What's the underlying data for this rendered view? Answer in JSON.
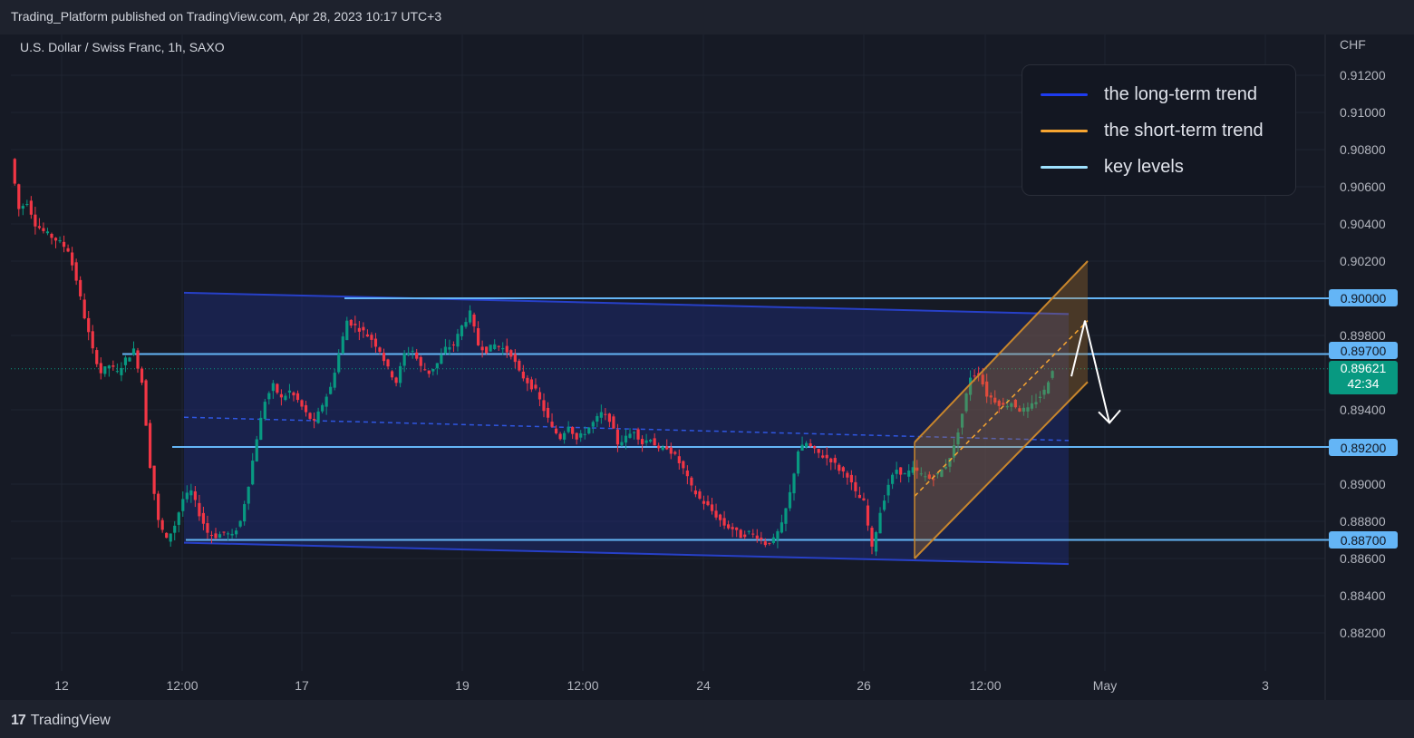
{
  "header": {
    "publish_text": "Trading_Platform published on TradingView.com, Apr 28, 2023 10:17 UTC+3"
  },
  "symbol_text": "U.S. Dollar / Swiss Franc, 1h, SAXO",
  "footer": {
    "brand": "TradingView",
    "logo_glyph": "17"
  },
  "legend": [
    {
      "label": "the long-term trend",
      "color": "#1e3cf0"
    },
    {
      "label": "the short-term trend",
      "color": "#f7a531"
    },
    {
      "label": "key levels",
      "color": "#9fe2ff"
    }
  ],
  "key_levels": [
    {
      "label": "0.90000",
      "value": 0.9
    },
    {
      "label": "0.89700",
      "value": 0.897
    },
    {
      "label": "0.89200",
      "value": 0.892
    },
    {
      "label": "0.88700",
      "value": 0.887
    }
  ],
  "current_price": {
    "value": "0.89621",
    "countdown": "42:34",
    "color": "#089981"
  },
  "colors": {
    "up": "#089981",
    "down": "#f23645",
    "level_line": "#64b5f6",
    "channel_fill": "#1e2a6e",
    "channel_line": "#1e3a9e"
  },
  "chart_data": {
    "type": "candlestick",
    "title": "U.S. Dollar / Swiss Franc, 1h, SAXO",
    "currency": "CHF",
    "y_ticks": [
      "0.91200",
      "0.91000",
      "0.90800",
      "0.90600",
      "0.90400",
      "0.90200",
      "0.89800",
      "0.89400",
      "0.89000",
      "0.88800",
      "0.88600",
      "0.88400",
      "0.88200"
    ],
    "x_ticks": [
      "12",
      "12:00",
      "17",
      "19",
      "12:00",
      "24",
      "26",
      "12:00",
      "May",
      "3"
    ],
    "ylim": [
      0.8805,
      0.9135
    ],
    "close_path": [
      [
        0,
        0.9075
      ],
      [
        1,
        0.9048
      ],
      [
        2,
        0.9052
      ],
      [
        3,
        0.904
      ],
      [
        4,
        0.9036
      ],
      [
        5,
        0.9033
      ],
      [
        6,
        0.903
      ],
      [
        7,
        0.9026
      ],
      [
        8,
        0.901
      ],
      [
        9,
        0.899
      ],
      [
        10,
        0.8972
      ],
      [
        11,
        0.896
      ],
      [
        12,
        0.8964
      ],
      [
        13,
        0.896
      ],
      [
        14,
        0.8967
      ],
      [
        15,
        0.8972
      ],
      [
        16,
        0.8955
      ],
      [
        17,
        0.891
      ],
      [
        18,
        0.888
      ],
      [
        19,
        0.887
      ],
      [
        20,
        0.8878
      ],
      [
        21,
        0.8892
      ],
      [
        22,
        0.8896
      ],
      [
        23,
        0.8884
      ],
      [
        24,
        0.8874
      ],
      [
        25,
        0.8872
      ],
      [
        26,
        0.8874
      ],
      [
        27,
        0.8872
      ],
      [
        28,
        0.888
      ],
      [
        29,
        0.89
      ],
      [
        30,
        0.8925
      ],
      [
        31,
        0.8945
      ],
      [
        32,
        0.8953
      ],
      [
        33,
        0.8946
      ],
      [
        34,
        0.895
      ],
      [
        35,
        0.8945
      ],
      [
        36,
        0.8938
      ],
      [
        37,
        0.8933
      ],
      [
        38,
        0.8943
      ],
      [
        39,
        0.8952
      ],
      [
        40,
        0.897
      ],
      [
        41,
        0.8988
      ],
      [
        42,
        0.8985
      ],
      [
        43,
        0.8982
      ],
      [
        44,
        0.8978
      ],
      [
        45,
        0.8972
      ],
      [
        46,
        0.8962
      ],
      [
        47,
        0.8955
      ],
      [
        48,
        0.897
      ],
      [
        49,
        0.8972
      ],
      [
        50,
        0.8963
      ],
      [
        51,
        0.896
      ],
      [
        52,
        0.8965
      ],
      [
        53,
        0.8973
      ],
      [
        54,
        0.8975
      ],
      [
        55,
        0.8985
      ],
      [
        56,
        0.8992
      ],
      [
        57,
        0.8975
      ],
      [
        58,
        0.8972
      ],
      [
        59,
        0.8975
      ],
      [
        60,
        0.8973
      ],
      [
        61,
        0.897
      ],
      [
        62,
        0.896
      ],
      [
        63,
        0.8955
      ],
      [
        64,
        0.895
      ],
      [
        65,
        0.894
      ],
      [
        66,
        0.893
      ],
      [
        67,
        0.8925
      ],
      [
        68,
        0.8932
      ],
      [
        69,
        0.8924
      ],
      [
        70,
        0.8928
      ],
      [
        71,
        0.8933
      ],
      [
        72,
        0.8938
      ],
      [
        73,
        0.8935
      ],
      [
        74,
        0.8922
      ],
      [
        75,
        0.8925
      ],
      [
        76,
        0.8929
      ],
      [
        77,
        0.8922
      ],
      [
        78,
        0.8925
      ],
      [
        79,
        0.8918
      ],
      [
        80,
        0.892
      ],
      [
        81,
        0.8915
      ],
      [
        82,
        0.8908
      ],
      [
        83,
        0.8898
      ],
      [
        84,
        0.8892
      ],
      [
        85,
        0.8888
      ],
      [
        86,
        0.8883
      ],
      [
        87,
        0.8878
      ],
      [
        88,
        0.8876
      ],
      [
        89,
        0.8872
      ],
      [
        90,
        0.8874
      ],
      [
        91,
        0.8872
      ],
      [
        92,
        0.8868
      ],
      [
        93,
        0.887
      ],
      [
        94,
        0.8878
      ],
      [
        95,
        0.8895
      ],
      [
        96,
        0.8918
      ],
      [
        97,
        0.8922
      ],
      [
        98,
        0.8918
      ],
      [
        99,
        0.8915
      ],
      [
        100,
        0.8913
      ],
      [
        101,
        0.8908
      ],
      [
        102,
        0.8905
      ],
      [
        103,
        0.8895
      ],
      [
        104,
        0.889
      ],
      [
        105,
        0.8865
      ],
      [
        106,
        0.8885
      ],
      [
        107,
        0.89
      ],
      [
        108,
        0.8908
      ],
      [
        109,
        0.8905
      ],
      [
        110,
        0.8908
      ],
      [
        111,
        0.8905
      ],
      [
        112,
        0.8903
      ],
      [
        113,
        0.8905
      ],
      [
        114,
        0.891
      ],
      [
        115,
        0.892
      ],
      [
        116,
        0.8938
      ],
      [
        117,
        0.8958
      ],
      [
        118,
        0.896
      ],
      [
        119,
        0.8948
      ],
      [
        120,
        0.8945
      ],
      [
        121,
        0.8942
      ],
      [
        122,
        0.8944
      ],
      [
        123,
        0.894
      ],
      [
        124,
        0.894
      ],
      [
        125,
        0.8945
      ],
      [
        126,
        0.895
      ],
      [
        127,
        0.8962
      ]
    ],
    "long_term_channel": {
      "upper": [
        [
          0,
          0.9003
        ],
        [
          1,
          0.89915
        ]
      ],
      "mid": [
        [
          0,
          0.8936
        ],
        [
          1,
          0.89235
        ]
      ],
      "lower": [
        [
          0,
          0.88685
        ],
        [
          1,
          0.8857
        ]
      ]
    },
    "short_term_channel": {
      "upper": [
        [
          0,
          0.89225
        ],
        [
          1,
          0.902
        ]
      ],
      "mid": [
        [
          0,
          0.88935
        ],
        [
          1,
          0.8988
        ]
      ],
      "lower": [
        [
          0,
          0.886
        ],
        [
          1,
          0.8955
        ]
      ]
    },
    "projection": [
      [
        0.8958,
        0.8988,
        0.8933
      ]
    ]
  }
}
